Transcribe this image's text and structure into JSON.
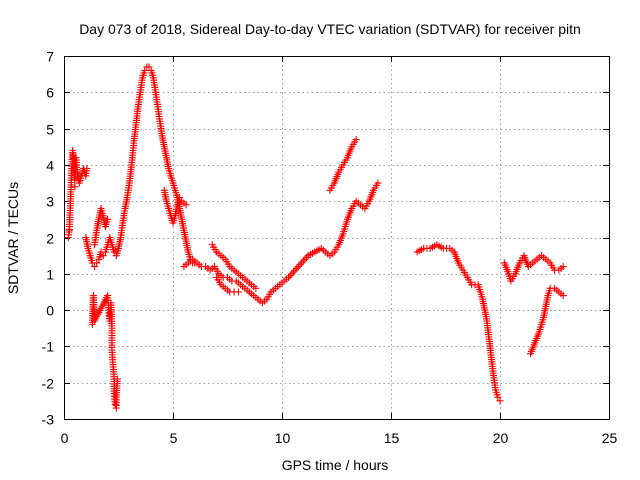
{
  "chart_data": {
    "type": "scatter",
    "title": "Day 073 of 2018, Sidereal Day-to-day VTEC variation (SDTVAR) for receiver pitn",
    "xlabel": "GPS time / hours",
    "ylabel": "SDTVAR / TECUs",
    "xlim": [
      0,
      25
    ],
    "ylim": [
      -3,
      7
    ],
    "xticks": [
      0,
      5,
      10,
      15,
      20,
      25
    ],
    "xtick_labels": [
      "0",
      "5",
      "10",
      "15",
      "20",
      "25"
    ],
    "yticks": [
      -3,
      -2,
      -1,
      0,
      1,
      2,
      3,
      4,
      5,
      6,
      7
    ],
    "ytick_labels": [
      "-3",
      "-2",
      "-1",
      "0",
      "1",
      "2",
      "3",
      "4",
      "5",
      "6",
      "7"
    ],
    "grid": true,
    "marker": "+",
    "color": "#ff0000",
    "series": [
      {
        "name": "early_scatter",
        "points": [
          [
            0.2,
            2.0
          ],
          [
            0.25,
            2.3
          ],
          [
            0.3,
            3.0
          ],
          [
            0.35,
            3.9
          ],
          [
            0.4,
            4.4
          ],
          [
            0.45,
            4.1
          ],
          [
            0.5,
            3.6
          ],
          [
            0.55,
            4.2
          ],
          [
            0.6,
            3.8
          ],
          [
            0.7,
            3.5
          ],
          [
            0.8,
            3.7
          ],
          [
            0.9,
            3.9
          ],
          [
            1.0,
            3.7
          ],
          [
            1.05,
            3.9
          ],
          [
            0.25,
            2.2
          ],
          [
            0.5,
            3.4
          ]
        ]
      },
      {
        "name": "dip_main",
        "points": [
          [
            1.0,
            2.0
          ],
          [
            1.1,
            1.7
          ],
          [
            1.2,
            1.5
          ],
          [
            1.3,
            1.3
          ],
          [
            1.4,
            1.2
          ],
          [
            1.5,
            1.3
          ],
          [
            1.6,
            1.4
          ],
          [
            1.7,
            1.6
          ],
          [
            1.8,
            1.5
          ],
          [
            1.9,
            1.6
          ],
          [
            2.0,
            1.8
          ],
          [
            2.1,
            2.0
          ],
          [
            2.2,
            1.8
          ],
          [
            2.3,
            1.6
          ],
          [
            2.4,
            1.5
          ],
          [
            2.5,
            1.7
          ],
          [
            2.6,
            2.0
          ],
          [
            2.7,
            2.4
          ],
          [
            2.8,
            2.8
          ],
          [
            2.9,
            3.1
          ],
          [
            3.0,
            3.5
          ],
          [
            3.1,
            4.0
          ],
          [
            3.2,
            4.6
          ],
          [
            3.3,
            5.1
          ],
          [
            3.4,
            5.6
          ],
          [
            3.5,
            6.0
          ],
          [
            3.6,
            6.4
          ],
          [
            3.7,
            6.6
          ],
          [
            3.8,
            6.7
          ],
          [
            3.9,
            6.7
          ],
          [
            4.0,
            6.6
          ],
          [
            4.1,
            6.4
          ],
          [
            4.2,
            6.0
          ],
          [
            4.3,
            5.6
          ],
          [
            4.4,
            5.2
          ],
          [
            4.5,
            4.8
          ],
          [
            4.6,
            4.5
          ],
          [
            4.7,
            4.2
          ],
          [
            4.8,
            3.9
          ],
          [
            4.9,
            3.7
          ],
          [
            5.0,
            3.5
          ],
          [
            5.1,
            3.3
          ],
          [
            5.2,
            3.1
          ],
          [
            5.3,
            2.8
          ],
          [
            5.4,
            2.5
          ],
          [
            5.5,
            2.2
          ],
          [
            5.6,
            1.9
          ],
          [
            5.7,
            1.6
          ],
          [
            5.8,
            1.4
          ],
          [
            5.9,
            1.3
          ],
          [
            6.0,
            1.3
          ]
        ]
      },
      {
        "name": "dip_upper_branch",
        "points": [
          [
            1.4,
            1.8
          ],
          [
            1.5,
            2.2
          ],
          [
            1.6,
            2.5
          ],
          [
            1.7,
            2.8
          ],
          [
            1.8,
            2.6
          ],
          [
            1.9,
            2.3
          ],
          [
            2.0,
            2.5
          ]
        ]
      },
      {
        "name": "negative_spikes",
        "points": [
          [
            1.3,
            -0.4
          ],
          [
            1.35,
            0.4
          ],
          [
            1.4,
            -0.3
          ],
          [
            2.0,
            0.4
          ],
          [
            2.05,
            0.0
          ],
          [
            2.1,
            -0.3
          ],
          [
            2.15,
            0.2
          ],
          [
            2.2,
            -0.5
          ],
          [
            2.2,
            -1.1
          ],
          [
            2.25,
            -1.5
          ],
          [
            2.3,
            -1.9
          ],
          [
            2.3,
            -2.3
          ],
          [
            2.35,
            -2.6
          ],
          [
            2.4,
            -2.7
          ],
          [
            2.4,
            -2.4
          ],
          [
            2.45,
            -1.9
          ]
        ]
      },
      {
        "name": "flank",
        "points": [
          [
            4.6,
            3.3
          ],
          [
            4.7,
            3.0
          ],
          [
            4.8,
            2.8
          ],
          [
            4.9,
            2.6
          ],
          [
            5.0,
            2.4
          ],
          [
            5.1,
            2.6
          ],
          [
            5.2,
            2.9
          ],
          [
            5.3,
            3.1
          ],
          [
            5.4,
            3.0
          ],
          [
            5.6,
            2.9
          ]
        ]
      },
      {
        "name": "mid_trough_a",
        "points": [
          [
            5.5,
            1.2
          ],
          [
            5.7,
            1.3
          ],
          [
            5.9,
            1.4
          ],
          [
            6.1,
            1.3
          ],
          [
            6.3,
            1.2
          ],
          [
            6.5,
            1.2
          ],
          [
            6.7,
            1.1
          ],
          [
            6.9,
            1.2
          ],
          [
            7.1,
            1.0
          ],
          [
            7.3,
            0.9
          ],
          [
            7.5,
            0.9
          ],
          [
            7.7,
            0.8
          ],
          [
            7.9,
            0.8
          ],
          [
            8.1,
            0.7
          ],
          [
            8.3,
            0.6
          ],
          [
            8.5,
            0.5
          ],
          [
            8.7,
            0.4
          ],
          [
            8.9,
            0.3
          ],
          [
            9.1,
            0.2
          ],
          [
            9.3,
            0.3
          ],
          [
            9.5,
            0.5
          ],
          [
            9.7,
            0.6
          ],
          [
            9.9,
            0.7
          ],
          [
            10.1,
            0.8
          ],
          [
            10.3,
            0.9
          ]
        ]
      },
      {
        "name": "mid_trough_b",
        "points": [
          [
            6.8,
            1.8
          ],
          [
            7.0,
            1.6
          ],
          [
            7.2,
            1.5
          ],
          [
            7.4,
            1.4
          ],
          [
            7.6,
            1.2
          ],
          [
            7.8,
            1.1
          ],
          [
            8.0,
            1.0
          ],
          [
            8.2,
            0.9
          ],
          [
            8.4,
            0.8
          ],
          [
            8.6,
            0.7
          ],
          [
            8.8,
            0.6
          ],
          [
            7.0,
            0.9
          ],
          [
            7.2,
            0.7
          ],
          [
            7.4,
            0.6
          ],
          [
            7.6,
            0.5
          ],
          [
            7.8,
            0.5
          ],
          [
            8.0,
            0.5
          ]
        ]
      },
      {
        "name": "rise_after_10",
        "points": [
          [
            10.3,
            0.9
          ],
          [
            10.6,
            1.1
          ],
          [
            10.9,
            1.3
          ],
          [
            11.2,
            1.5
          ],
          [
            11.5,
            1.6
          ],
          [
            11.8,
            1.7
          ],
          [
            12.0,
            1.6
          ],
          [
            12.2,
            1.5
          ],
          [
            12.4,
            1.6
          ],
          [
            12.6,
            1.8
          ],
          [
            12.8,
            2.1
          ],
          [
            13.0,
            2.5
          ],
          [
            13.2,
            2.8
          ],
          [
            13.4,
            3.0
          ],
          [
            13.6,
            2.9
          ],
          [
            13.8,
            2.8
          ],
          [
            14.0,
            3.0
          ],
          [
            14.2,
            3.3
          ],
          [
            14.4,
            3.5
          ]
        ]
      },
      {
        "name": "upper_arc",
        "points": [
          [
            12.2,
            3.3
          ],
          [
            12.4,
            3.5
          ],
          [
            12.6,
            3.8
          ],
          [
            12.8,
            4.0
          ],
          [
            13.0,
            4.2
          ],
          [
            13.2,
            4.5
          ],
          [
            13.4,
            4.7
          ]
        ]
      },
      {
        "name": "after_16",
        "points": [
          [
            16.2,
            1.6
          ],
          [
            16.5,
            1.7
          ],
          [
            16.8,
            1.7
          ],
          [
            17.1,
            1.8
          ],
          [
            17.4,
            1.7
          ],
          [
            17.7,
            1.7
          ],
          [
            17.9,
            1.6
          ],
          [
            18.1,
            1.3
          ],
          [
            18.3,
            1.1
          ],
          [
            18.5,
            0.9
          ],
          [
            18.7,
            0.7
          ],
          [
            19.0,
            0.7
          ],
          [
            19.2,
            0.3
          ],
          [
            19.4,
            -0.3
          ],
          [
            19.5,
            -0.8
          ],
          [
            19.6,
            -1.3
          ],
          [
            19.7,
            -1.8
          ],
          [
            19.8,
            -2.2
          ],
          [
            19.9,
            -2.4
          ],
          [
            20.0,
            -2.5
          ]
        ]
      },
      {
        "name": "late_segment",
        "points": [
          [
            20.2,
            1.3
          ],
          [
            20.4,
            1.0
          ],
          [
            20.5,
            0.8
          ],
          [
            20.7,
            1.0
          ],
          [
            20.9,
            1.3
          ],
          [
            21.1,
            1.5
          ],
          [
            21.3,
            1.2
          ],
          [
            21.5,
            1.3
          ],
          [
            21.7,
            1.4
          ],
          [
            21.9,
            1.5
          ],
          [
            22.1,
            1.4
          ],
          [
            22.3,
            1.3
          ],
          [
            22.5,
            1.1
          ],
          [
            22.7,
            1.1
          ],
          [
            22.9,
            1.2
          ],
          [
            21.4,
            -1.2
          ],
          [
            21.6,
            -0.9
          ],
          [
            21.8,
            -0.6
          ],
          [
            22.0,
            -0.2
          ],
          [
            22.1,
            0.1
          ],
          [
            22.2,
            0.4
          ],
          [
            22.3,
            0.6
          ],
          [
            22.5,
            0.6
          ],
          [
            22.7,
            0.5
          ],
          [
            22.9,
            0.4
          ]
        ]
      }
    ]
  }
}
